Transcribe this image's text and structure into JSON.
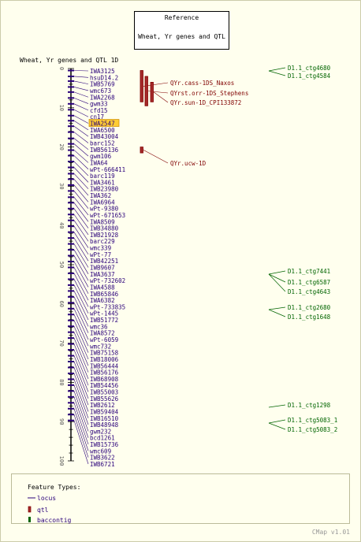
{
  "reference": {
    "title": "Reference",
    "subtitle": "Wheat, Yr genes and QTL"
  },
  "map_title": "Wheat, Yr genes and QTL 1D",
  "axis": {
    "min": 0,
    "max": 100,
    "ticks": [
      0,
      10,
      20,
      30,
      40,
      50,
      60,
      70,
      80,
      90,
      100
    ]
  },
  "loci": [
    {
      "name": "IWA3125",
      "pos": 0.5
    },
    {
      "name": "hsuD14.2",
      "pos": 2
    },
    {
      "name": "IWB5769",
      "pos": 3.2
    },
    {
      "name": "wmc673",
      "pos": 4.7
    },
    {
      "name": "IWA2268",
      "pos": 6
    },
    {
      "name": "gwm33",
      "pos": 7.5
    },
    {
      "name": "cfd15",
      "pos": 9
    },
    {
      "name": "cn17",
      "pos": 10.5
    },
    {
      "name": "IWA2547",
      "pos": 12,
      "highlight": true
    },
    {
      "name": "IWA6500",
      "pos": 13.3
    },
    {
      "name": "IWB43004",
      "pos": 14.7
    },
    {
      "name": "barc152",
      "pos": 16.2
    },
    {
      "name": "IWB56136",
      "pos": 17.8
    },
    {
      "name": "gwm106",
      "pos": 19.2
    },
    {
      "name": "IWA64",
      "pos": 20.8
    },
    {
      "name": "wPt-666411",
      "pos": 22.2
    },
    {
      "name": "barc119",
      "pos": 23.7
    },
    {
      "name": "IWA3461",
      "pos": 25.2
    },
    {
      "name": "IWB23980",
      "pos": 26.8
    },
    {
      "name": "IWA362",
      "pos": 28.2
    },
    {
      "name": "IWA6964",
      "pos": 29.7
    },
    {
      "name": "wPt-9380",
      "pos": 31.2
    },
    {
      "name": "wPt-671653",
      "pos": 32.8
    },
    {
      "name": "IWA8509",
      "pos": 34.2
    },
    {
      "name": "IWB34880",
      "pos": 35.7
    },
    {
      "name": "IWB21928",
      "pos": 37.2
    },
    {
      "name": "barc229",
      "pos": 38.7
    },
    {
      "name": "wmc339",
      "pos": 40.2
    },
    {
      "name": "wPt-77",
      "pos": 41.7
    },
    {
      "name": "IWB42251",
      "pos": 43.2
    },
    {
      "name": "IWB9607",
      "pos": 44.7
    },
    {
      "name": "IWA3637",
      "pos": 46.2
    },
    {
      "name": "wPt-732602",
      "pos": 47.7
    },
    {
      "name": "IWA4588",
      "pos": 49.2
    },
    {
      "name": "IWB65846",
      "pos": 50.7
    },
    {
      "name": "IWA6382",
      "pos": 52.2
    },
    {
      "name": "wPt-733835",
      "pos": 53.7
    },
    {
      "name": "wPt-1445",
      "pos": 55.2
    },
    {
      "name": "IWB51772",
      "pos": 56.7
    },
    {
      "name": "wmc36",
      "pos": 58.2
    },
    {
      "name": "IWA8572",
      "pos": 59.7
    },
    {
      "name": "wPt-6059",
      "pos": 61.2
    },
    {
      "name": "wmc732",
      "pos": 62.7
    },
    {
      "name": "IWB75158",
      "pos": 64.2
    },
    {
      "name": "IWB18006",
      "pos": 65.7
    },
    {
      "name": "IWB56444",
      "pos": 67.2
    },
    {
      "name": "IWB56176",
      "pos": 68.7
    },
    {
      "name": "IWB68908",
      "pos": 70.2
    },
    {
      "name": "IWB54456",
      "pos": 71.7
    },
    {
      "name": "IWB55003",
      "pos": 73.2
    },
    {
      "name": "IWB55626",
      "pos": 74.7
    },
    {
      "name": "IWB2612",
      "pos": 76.2
    },
    {
      "name": "IWB59404",
      "pos": 77.7
    },
    {
      "name": "IWB16510",
      "pos": 79.2
    },
    {
      "name": "IWB48948",
      "pos": 80.7
    },
    {
      "name": "gwm232",
      "pos": 82.2
    },
    {
      "name": "bcd1261",
      "pos": 83.7
    },
    {
      "name": "IWB15736",
      "pos": 85.2
    },
    {
      "name": "wmc609",
      "pos": 86.7
    },
    {
      "name": "IWB3622",
      "pos": 88.2
    },
    {
      "name": "IWB6721",
      "pos": 89.7
    }
  ],
  "qtls": [
    {
      "name": "QYr.cass-1DS_Naxos",
      "start": 0.5,
      "end": 8.5
    },
    {
      "name": "QYrst.orr-1DS_Stephens",
      "start": 2,
      "end": 9.5
    },
    {
      "name": "QYr.sun-1D_CPI133872",
      "start": 3.5,
      "end": 8.5
    },
    {
      "name": "QYr.ucw-1D",
      "start": 20,
      "end": 21.5
    }
  ],
  "contigs": [
    {
      "name": "D1.1_ctg4680",
      "pos": 1
    },
    {
      "name": "D1.1_ctg4584",
      "pos": 2
    },
    {
      "name": "D1.1_ctg7441",
      "pos": 47
    },
    {
      "name": "D1.1_ctg6587",
      "pos": 48
    },
    {
      "name": "D1.1_ctg4643",
      "pos": 49
    },
    {
      "name": "D1.1_ctg2680",
      "pos": 54
    },
    {
      "name": "D1.1_ctg1648",
      "pos": 55
    },
    {
      "name": "D1.1_ctg1298",
      "pos": 77
    },
    {
      "name": "D1.1_ctg5083_1",
      "pos": 80
    },
    {
      "name": "D1.1_ctg5083_2",
      "pos": 81
    }
  ],
  "legend": {
    "title": "Feature Types:",
    "items": [
      {
        "label": "locus",
        "kind": "locus"
      },
      {
        "label": "qtl",
        "kind": "qtl"
      },
      {
        "label": "baccontig",
        "kind": "baccontig"
      }
    ]
  },
  "footer": "CMap v1.01",
  "colors": {
    "background": "#ffffee",
    "locus": "#2a007a",
    "qtl": "#800000",
    "qtl_fill": "#a52a2a",
    "contig": "#006400",
    "highlight": "#ffcc33",
    "axis": "#000000"
  }
}
